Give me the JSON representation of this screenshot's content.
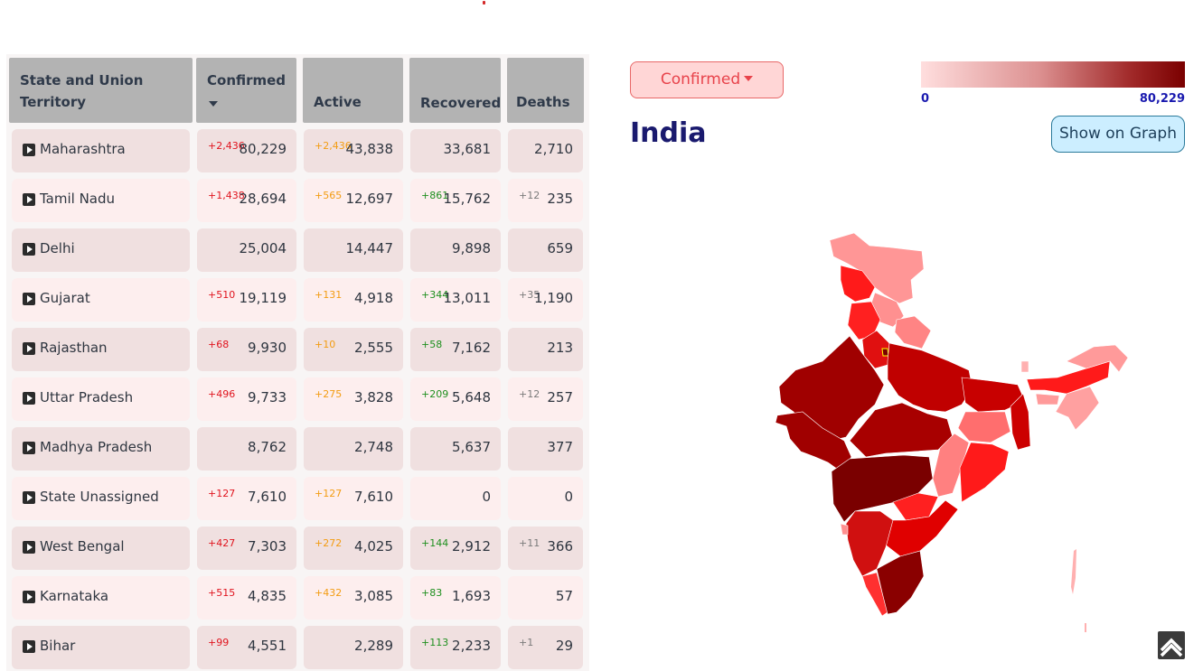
{
  "table": {
    "headers": {
      "state_line1": "State and Union",
      "state_line2": "Territory",
      "confirmed": "Confirmed",
      "active": "Active",
      "recovered": "Recovered",
      "deaths": "Deaths"
    },
    "rows": [
      {
        "name": "Maharashtra",
        "confirmed": "80,229",
        "confirmed_delta": "+2,436",
        "active": "43,838",
        "active_delta": "+2,436",
        "recovered": "33,681",
        "recovered_delta": "",
        "deaths": "2,710",
        "deaths_delta": ""
      },
      {
        "name": "Tamil Nadu",
        "confirmed": "28,694",
        "confirmed_delta": "+1,438",
        "active": "12,697",
        "active_delta": "+565",
        "recovered": "15,762",
        "recovered_delta": "+861",
        "deaths": "235",
        "deaths_delta": "+12"
      },
      {
        "name": "Delhi",
        "confirmed": "25,004",
        "confirmed_delta": "",
        "active": "14,447",
        "active_delta": "",
        "recovered": "9,898",
        "recovered_delta": "",
        "deaths": "659",
        "deaths_delta": ""
      },
      {
        "name": "Gujarat",
        "confirmed": "19,119",
        "confirmed_delta": "+510",
        "active": "4,918",
        "active_delta": "+131",
        "recovered": "13,011",
        "recovered_delta": "+344",
        "deaths": "1,190",
        "deaths_delta": "+35"
      },
      {
        "name": "Rajasthan",
        "confirmed": "9,930",
        "confirmed_delta": "+68",
        "active": "2,555",
        "active_delta": "+10",
        "recovered": "7,162",
        "recovered_delta": "+58",
        "deaths": "213",
        "deaths_delta": ""
      },
      {
        "name": "Uttar Pradesh",
        "confirmed": "9,733",
        "confirmed_delta": "+496",
        "active": "3,828",
        "active_delta": "+275",
        "recovered": "5,648",
        "recovered_delta": "+209",
        "deaths": "257",
        "deaths_delta": "+12"
      },
      {
        "name": "Madhya Pradesh",
        "confirmed": "8,762",
        "confirmed_delta": "",
        "active": "2,748",
        "active_delta": "",
        "recovered": "5,637",
        "recovered_delta": "",
        "deaths": "377",
        "deaths_delta": ""
      },
      {
        "name": "State Unassigned",
        "confirmed": "7,610",
        "confirmed_delta": "+127",
        "active": "7,610",
        "active_delta": "+127",
        "recovered": "0",
        "recovered_delta": "",
        "deaths": "0",
        "deaths_delta": ""
      },
      {
        "name": "West Bengal",
        "confirmed": "7,303",
        "confirmed_delta": "+427",
        "active": "4,025",
        "active_delta": "+272",
        "recovered": "2,912",
        "recovered_delta": "+144",
        "deaths": "366",
        "deaths_delta": "+11"
      },
      {
        "name": "Karnataka",
        "confirmed": "4,835",
        "confirmed_delta": "+515",
        "active": "3,085",
        "active_delta": "+432",
        "recovered": "1,693",
        "recovered_delta": "+83",
        "deaths": "57",
        "deaths_delta": ""
      },
      {
        "name": "Bihar",
        "confirmed": "4,551",
        "confirmed_delta": "+99",
        "active": "2,289",
        "active_delta": "",
        "recovered": "2,233",
        "recovered_delta": "+113",
        "deaths": "29",
        "deaths_delta": "+1"
      }
    ]
  },
  "map_panel": {
    "metric_label": "Confirmed",
    "legend_min": "0",
    "legend_max": "80,229",
    "region_title": "India",
    "show_graph_label": "Show on Graph",
    "colors": {
      "legend_low": "#ffdede",
      "legend_high": "#7a0000",
      "accent_red": "#e8434b",
      "title_blue": "#1a1a6e"
    }
  },
  "icons": {
    "expand_row": "play-icon",
    "sort": "caret-down-icon",
    "back_to_top": "chevron-up-icon"
  }
}
